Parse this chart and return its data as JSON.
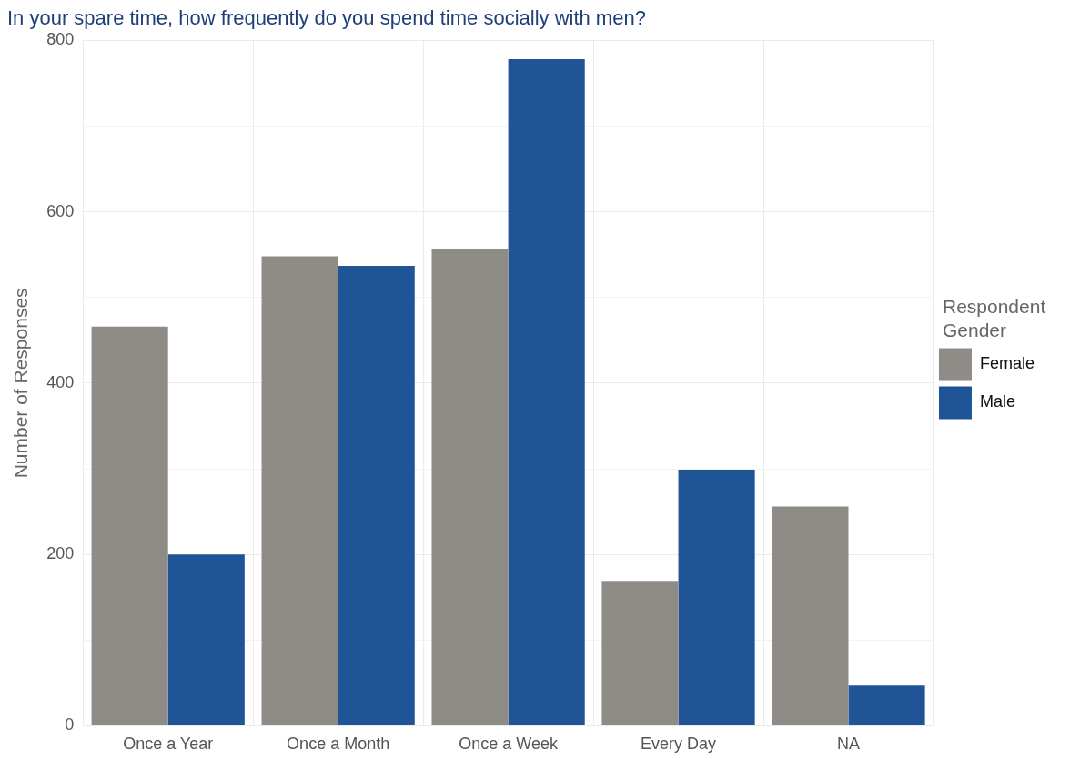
{
  "chart_data": {
    "type": "bar",
    "title": "In your spare time, how frequently do you spend time socially with men?",
    "ylabel": "Number of Responses",
    "legend_title": "Respondent Gender",
    "categories": [
      "Once a Year",
      "Once a Month",
      "Once a Week",
      "Every Day",
      "NA"
    ],
    "series": [
      {
        "name": "Female",
        "color": "#8f8b87",
        "values": [
          466,
          548,
          556,
          169,
          256
        ]
      },
      {
        "name": "Male",
        "color": "#1f5596",
        "values": [
          200,
          537,
          778,
          299,
          47
        ]
      }
    ],
    "ylim": [
      0,
      800
    ],
    "yticks": [
      0,
      {
        "value": 100,
        "label": null
      },
      200,
      {
        "value": 300,
        "label": null
      },
      400,
      {
        "value": 500,
        "label": null
      },
      600,
      {
        "value": 700,
        "label": null
      },
      800
    ],
    "grid": true,
    "legend": "right"
  }
}
